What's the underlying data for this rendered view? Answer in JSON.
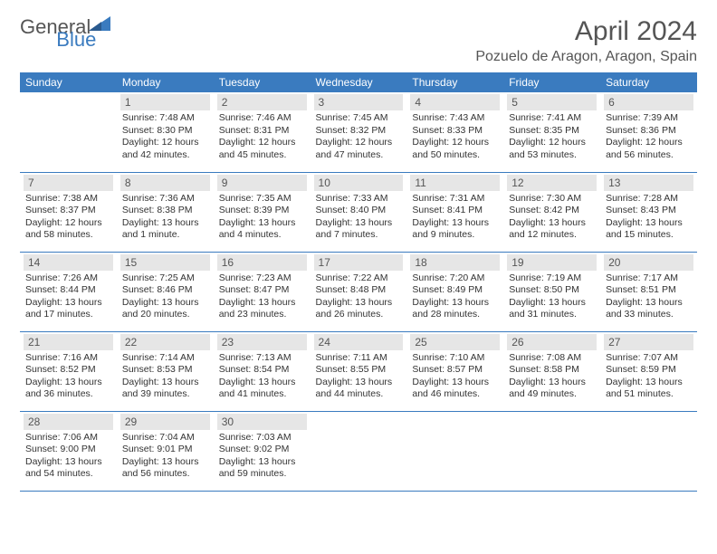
{
  "brand": {
    "word1": "General",
    "word2": "Blue"
  },
  "title": "April 2024",
  "location": "Pozuelo de Aragon, Aragon, Spain",
  "headers": [
    "Sunday",
    "Monday",
    "Tuesday",
    "Wednesday",
    "Thursday",
    "Friday",
    "Saturday"
  ],
  "colors": {
    "header_bg": "#3a7bbf",
    "header_text": "#ffffff",
    "daynum_bg": "#e6e6e6",
    "text": "#333333",
    "title_text": "#555555",
    "border": "#3a7bbf"
  },
  "weeks": [
    [
      null,
      {
        "n": "1",
        "sr": "Sunrise: 7:48 AM",
        "ss": "Sunset: 8:30 PM",
        "d1": "Daylight: 12 hours",
        "d2": "and 42 minutes."
      },
      {
        "n": "2",
        "sr": "Sunrise: 7:46 AM",
        "ss": "Sunset: 8:31 PM",
        "d1": "Daylight: 12 hours",
        "d2": "and 45 minutes."
      },
      {
        "n": "3",
        "sr": "Sunrise: 7:45 AM",
        "ss": "Sunset: 8:32 PM",
        "d1": "Daylight: 12 hours",
        "d2": "and 47 minutes."
      },
      {
        "n": "4",
        "sr": "Sunrise: 7:43 AM",
        "ss": "Sunset: 8:33 PM",
        "d1": "Daylight: 12 hours",
        "d2": "and 50 minutes."
      },
      {
        "n": "5",
        "sr": "Sunrise: 7:41 AM",
        "ss": "Sunset: 8:35 PM",
        "d1": "Daylight: 12 hours",
        "d2": "and 53 minutes."
      },
      {
        "n": "6",
        "sr": "Sunrise: 7:39 AM",
        "ss": "Sunset: 8:36 PM",
        "d1": "Daylight: 12 hours",
        "d2": "and 56 minutes."
      }
    ],
    [
      {
        "n": "7",
        "sr": "Sunrise: 7:38 AM",
        "ss": "Sunset: 8:37 PM",
        "d1": "Daylight: 12 hours",
        "d2": "and 58 minutes."
      },
      {
        "n": "8",
        "sr": "Sunrise: 7:36 AM",
        "ss": "Sunset: 8:38 PM",
        "d1": "Daylight: 13 hours",
        "d2": "and 1 minute."
      },
      {
        "n": "9",
        "sr": "Sunrise: 7:35 AM",
        "ss": "Sunset: 8:39 PM",
        "d1": "Daylight: 13 hours",
        "d2": "and 4 minutes."
      },
      {
        "n": "10",
        "sr": "Sunrise: 7:33 AM",
        "ss": "Sunset: 8:40 PM",
        "d1": "Daylight: 13 hours",
        "d2": "and 7 minutes."
      },
      {
        "n": "11",
        "sr": "Sunrise: 7:31 AM",
        "ss": "Sunset: 8:41 PM",
        "d1": "Daylight: 13 hours",
        "d2": "and 9 minutes."
      },
      {
        "n": "12",
        "sr": "Sunrise: 7:30 AM",
        "ss": "Sunset: 8:42 PM",
        "d1": "Daylight: 13 hours",
        "d2": "and 12 minutes."
      },
      {
        "n": "13",
        "sr": "Sunrise: 7:28 AM",
        "ss": "Sunset: 8:43 PM",
        "d1": "Daylight: 13 hours",
        "d2": "and 15 minutes."
      }
    ],
    [
      {
        "n": "14",
        "sr": "Sunrise: 7:26 AM",
        "ss": "Sunset: 8:44 PM",
        "d1": "Daylight: 13 hours",
        "d2": "and 17 minutes."
      },
      {
        "n": "15",
        "sr": "Sunrise: 7:25 AM",
        "ss": "Sunset: 8:46 PM",
        "d1": "Daylight: 13 hours",
        "d2": "and 20 minutes."
      },
      {
        "n": "16",
        "sr": "Sunrise: 7:23 AM",
        "ss": "Sunset: 8:47 PM",
        "d1": "Daylight: 13 hours",
        "d2": "and 23 minutes."
      },
      {
        "n": "17",
        "sr": "Sunrise: 7:22 AM",
        "ss": "Sunset: 8:48 PM",
        "d1": "Daylight: 13 hours",
        "d2": "and 26 minutes."
      },
      {
        "n": "18",
        "sr": "Sunrise: 7:20 AM",
        "ss": "Sunset: 8:49 PM",
        "d1": "Daylight: 13 hours",
        "d2": "and 28 minutes."
      },
      {
        "n": "19",
        "sr": "Sunrise: 7:19 AM",
        "ss": "Sunset: 8:50 PM",
        "d1": "Daylight: 13 hours",
        "d2": "and 31 minutes."
      },
      {
        "n": "20",
        "sr": "Sunrise: 7:17 AM",
        "ss": "Sunset: 8:51 PM",
        "d1": "Daylight: 13 hours",
        "d2": "and 33 minutes."
      }
    ],
    [
      {
        "n": "21",
        "sr": "Sunrise: 7:16 AM",
        "ss": "Sunset: 8:52 PM",
        "d1": "Daylight: 13 hours",
        "d2": "and 36 minutes."
      },
      {
        "n": "22",
        "sr": "Sunrise: 7:14 AM",
        "ss": "Sunset: 8:53 PM",
        "d1": "Daylight: 13 hours",
        "d2": "and 39 minutes."
      },
      {
        "n": "23",
        "sr": "Sunrise: 7:13 AM",
        "ss": "Sunset: 8:54 PM",
        "d1": "Daylight: 13 hours",
        "d2": "and 41 minutes."
      },
      {
        "n": "24",
        "sr": "Sunrise: 7:11 AM",
        "ss": "Sunset: 8:55 PM",
        "d1": "Daylight: 13 hours",
        "d2": "and 44 minutes."
      },
      {
        "n": "25",
        "sr": "Sunrise: 7:10 AM",
        "ss": "Sunset: 8:57 PM",
        "d1": "Daylight: 13 hours",
        "d2": "and 46 minutes."
      },
      {
        "n": "26",
        "sr": "Sunrise: 7:08 AM",
        "ss": "Sunset: 8:58 PM",
        "d1": "Daylight: 13 hours",
        "d2": "and 49 minutes."
      },
      {
        "n": "27",
        "sr": "Sunrise: 7:07 AM",
        "ss": "Sunset: 8:59 PM",
        "d1": "Daylight: 13 hours",
        "d2": "and 51 minutes."
      }
    ],
    [
      {
        "n": "28",
        "sr": "Sunrise: 7:06 AM",
        "ss": "Sunset: 9:00 PM",
        "d1": "Daylight: 13 hours",
        "d2": "and 54 minutes."
      },
      {
        "n": "29",
        "sr": "Sunrise: 7:04 AM",
        "ss": "Sunset: 9:01 PM",
        "d1": "Daylight: 13 hours",
        "d2": "and 56 minutes."
      },
      {
        "n": "30",
        "sr": "Sunrise: 7:03 AM",
        "ss": "Sunset: 9:02 PM",
        "d1": "Daylight: 13 hours",
        "d2": "and 59 minutes."
      },
      null,
      null,
      null,
      null
    ]
  ]
}
